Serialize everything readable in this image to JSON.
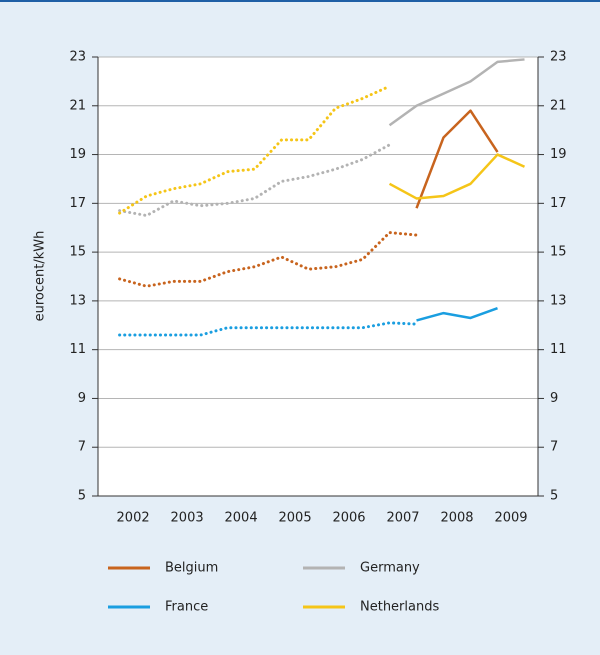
{
  "chart_data": {
    "type": "line",
    "ylabel": "eurocent/kWh",
    "x": [
      2002.25,
      2002.75,
      2003.25,
      2003.75,
      2004.25,
      2004.75,
      2005.25,
      2005.75,
      2006.25,
      2006.75,
      2007.25,
      2007.75,
      2008.25,
      2008.75,
      2009.25,
      2009.75
    ],
    "xlim": [
      2001.85,
      2010.0
    ],
    "xticks": [
      {
        "value": 2002.5,
        "label": "2002"
      },
      {
        "value": 2003.5,
        "label": "2003"
      },
      {
        "value": 2004.5,
        "label": "2004"
      },
      {
        "value": 2005.5,
        "label": "2005"
      },
      {
        "value": 2006.5,
        "label": "2006"
      },
      {
        "value": 2007.5,
        "label": "2007"
      },
      {
        "value": 2008.5,
        "label": "2008"
      },
      {
        "value": 2009.5,
        "label": "2009"
      }
    ],
    "ylim": [
      5,
      23
    ],
    "yticks": [
      5,
      7,
      9,
      11,
      13,
      15,
      17,
      19,
      21,
      23
    ],
    "grid": true,
    "series": [
      {
        "name": "Belgium",
        "color": "#c8641e",
        "dotted_values": [
          13.9,
          13.6,
          13.8,
          13.8,
          14.2,
          14.4,
          14.8,
          14.3,
          14.4,
          14.7,
          15.8,
          15.7,
          null,
          null,
          null,
          null
        ],
        "values": [
          null,
          null,
          null,
          null,
          null,
          null,
          null,
          null,
          null,
          null,
          null,
          16.8,
          19.7,
          20.8,
          19.1,
          null
        ]
      },
      {
        "name": "Germany",
        "color": "#b3b3b3",
        "dotted_values": [
          16.7,
          16.5,
          17.1,
          16.9,
          17.0,
          17.2,
          17.9,
          18.1,
          18.4,
          18.8,
          19.4,
          null,
          null,
          null,
          null,
          null
        ],
        "values": [
          null,
          null,
          null,
          null,
          null,
          null,
          null,
          null,
          null,
          null,
          20.2,
          21.0,
          21.5,
          22.0,
          22.8,
          22.9
        ]
      },
      {
        "name": "France",
        "color": "#1a9ee0",
        "dotted_values": [
          11.6,
          11.6,
          11.6,
          11.6,
          11.9,
          11.9,
          11.9,
          11.9,
          11.9,
          11.9,
          12.1,
          12.05,
          null,
          null,
          null,
          null
        ],
        "values": [
          null,
          null,
          null,
          null,
          null,
          null,
          null,
          null,
          null,
          null,
          null,
          12.2,
          12.5,
          12.3,
          12.7,
          null
        ]
      },
      {
        "name": "Netherlands",
        "color": "#f5c518",
        "dotted_values": [
          16.6,
          17.3,
          17.6,
          17.8,
          18.3,
          18.4,
          19.6,
          19.6,
          20.9,
          21.3,
          21.8,
          null,
          null,
          null,
          null,
          null
        ],
        "values": [
          null,
          null,
          null,
          null,
          null,
          null,
          null,
          null,
          null,
          null,
          17.8,
          17.2,
          17.3,
          17.8,
          19.0,
          18.5
        ]
      }
    ]
  }
}
